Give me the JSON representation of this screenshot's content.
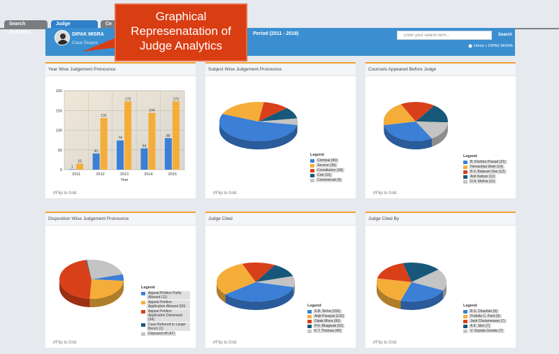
{
  "tabs": [
    {
      "label": "Search Analytics"
    },
    {
      "label": "Judge Analytics"
    },
    {
      "label": "Ce"
    }
  ],
  "header": {
    "user_name": "DIPAK MISRA",
    "user_sub": "Case Dispos",
    "period": "Period (2011 - 2018)",
    "search_placeholder": "Enter your search term...",
    "search_button": "Search",
    "breadcrumb_home": "Home",
    "breadcrumb_sep": "»",
    "breadcrumb_current": "DIPAK MISRA"
  },
  "callout": {
    "line1": "Graphical",
    "line2": "Represenatation of",
    "line3": "Judge Analytics"
  },
  "flip_label": "Flip to Grid",
  "legend_title": "Legend",
  "colors": {
    "blue": "#3b7fd6",
    "orange": "#f5ad3a",
    "red": "#d8401a",
    "teal": "#17587a",
    "gray": "#c4c4c4"
  },
  "panels": {
    "year_wise": {
      "title": "Year Wise Judgement Pronounce"
    },
    "subject_wise": {
      "title": "Subject Wise Judgement Pronounce"
    },
    "counsels": {
      "title": "Counsels Appeared Before Judge"
    },
    "disposition": {
      "title": "Disposition Wise Judgement Pronounce"
    },
    "judge_cited": {
      "title": "Judge Cited"
    },
    "judge_cited_by": {
      "title": "Judge Cited By"
    }
  },
  "chart_data": [
    {
      "type": "bar",
      "categories": [
        "2011",
        "2012",
        "2013",
        "2014",
        "2015"
      ],
      "series": [
        {
          "values": [
            1,
            41,
            74,
            54,
            80
          ]
        },
        {
          "values": [
            15,
            131,
            173,
            144,
            173
          ]
        }
      ],
      "title": "Year Wise Judgement Pronounce",
      "xlabel": "Year",
      "ylabel": "",
      "ylim": [
        0,
        200
      ],
      "yticks": [
        0,
        50,
        100,
        150,
        200
      ],
      "grid": true
    },
    {
      "type": "pie",
      "title": "Subject Wise Judgement Pronounce",
      "labels": [
        "Criminal (90)",
        "Service (35)",
        "Constitution (18)",
        "Civil (16)",
        "Commercial (9)"
      ],
      "values": [
        90,
        35,
        18,
        16,
        9
      ]
    },
    {
      "type": "pie",
      "title": "Counsels Appeared Before Judge",
      "labels": [
        "B. Krishna Prasad (21)",
        "Hemantika Wahi (14)",
        "B.V. Balaram Das (12)",
        "Anil Katiyar (11)",
        "D.S. Mahra (11)"
      ],
      "values": [
        21,
        14,
        12,
        11,
        11
      ]
    },
    {
      "type": "pie",
      "title": "Disposition Wise Judgement Pronounce",
      "labels": [
        "Appeal Petition Partly Allowed (11)",
        "Appeal Petition Application Allowed (50)",
        "Appeal Petition Application Dismissed (94)",
        "Case Referred to Larger Bench (1)",
        "Disposed off (47)"
      ],
      "values": [
        11,
        50,
        94,
        1,
        47
      ]
    },
    {
      "type": "pie",
      "title": "Judge Cited",
      "labels": [
        "S.B. Sinha (153)",
        "Arijit Pasayat (132)",
        "Dipak Misra (60)",
        "P.N. Bhagwati (52)",
        "K.T. Thomas (40)"
      ],
      "values": [
        153,
        132,
        60,
        52,
        40
      ]
    },
    {
      "type": "pie",
      "title": "Judge Cited By",
      "labels": [
        "B.S. Chauhan (9)",
        "Prafulla C. Pant (9)",
        "Jasti Chelameswar (7)",
        "A.K. Sikri (7)",
        "V. Gopala Gowda (7)"
      ],
      "values": [
        9,
        9,
        7,
        7,
        7
      ]
    }
  ]
}
